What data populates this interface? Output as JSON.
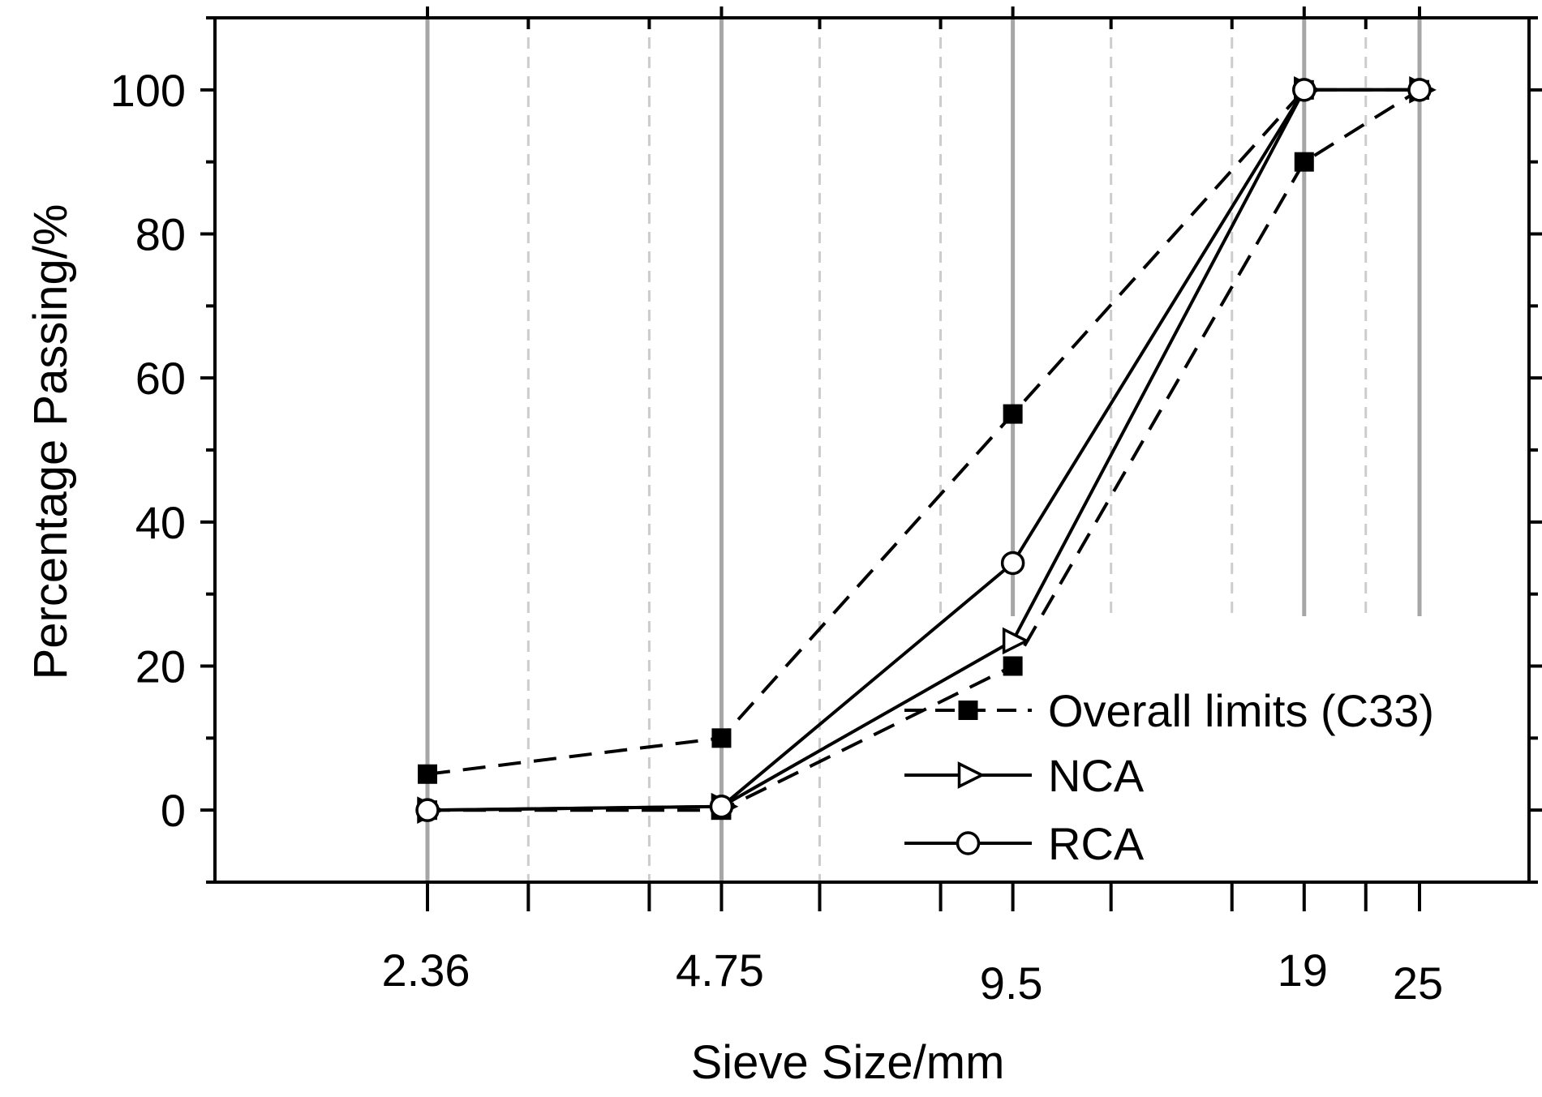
{
  "chart_data": {
    "type": "line",
    "title": "",
    "xlabel": "Sieve Size/mm",
    "ylabel": "Percentage Passing/%",
    "x_scale": "log",
    "x_ticks": [
      2.36,
      4.75,
      9.5,
      19,
      25
    ],
    "x_tick_labels": [
      "2.36",
      "4.75",
      "9.5",
      "19",
      "25"
    ],
    "x_minor_ticks": [
      3,
      4,
      6,
      8,
      12,
      16,
      22
    ],
    "ylim": [
      -10,
      110
    ],
    "y_ticks": [
      0,
      20,
      40,
      60,
      80,
      100
    ],
    "y_tick_labels": [
      "0",
      "20",
      "40",
      "60",
      "80",
      "100"
    ],
    "legend_position": "bottom-right",
    "series": [
      {
        "name": "Overall limits (C33)",
        "role": "upper",
        "marker": "filled-square",
        "line_style": "dashed",
        "x": [
          2.36,
          4.75,
          9.5,
          19,
          25
        ],
        "values": [
          5,
          10,
          55,
          100,
          100
        ]
      },
      {
        "name": "Overall limits (C33)",
        "role": "lower",
        "marker": "filled-square",
        "line_style": "dashed",
        "x": [
          2.36,
          4.75,
          9.5,
          19,
          25
        ],
        "values": [
          0,
          0,
          20,
          90,
          100
        ]
      },
      {
        "name": "NCA",
        "marker": "open-triangle-right",
        "line_style": "solid",
        "x": [
          2.36,
          4.75,
          9.5,
          19,
          25
        ],
        "values": [
          0,
          0.5,
          23.5,
          100,
          100
        ]
      },
      {
        "name": "RCA",
        "marker": "open-circle",
        "line_style": "solid",
        "x": [
          2.36,
          4.75,
          9.5,
          19,
          25
        ],
        "values": [
          0,
          0.5,
          34.3,
          100,
          100
        ]
      }
    ],
    "legend": [
      {
        "label": "Overall limits (C33)",
        "marker": "filled-square",
        "line_style": "dashed"
      },
      {
        "label": "NCA",
        "marker": "open-triangle-right",
        "line_style": "solid"
      },
      {
        "label": "RCA",
        "marker": "open-circle",
        "line_style": "solid"
      }
    ],
    "colors": {
      "line": "#000000",
      "major_grid": "#a6a6a6",
      "minor_grid": "#cccccc"
    }
  }
}
